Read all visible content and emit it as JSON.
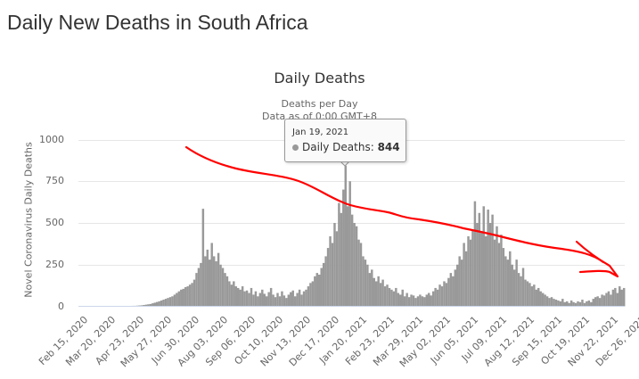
{
  "page_title": "Daily New Deaths in South Africa",
  "tooltip": {
    "date": "Jan 19, 2021",
    "series": "Daily Deaths",
    "value": "844"
  },
  "chart_data": {
    "type": "bar",
    "title": "Daily Deaths",
    "subtitle": "Deaths per Day",
    "subtitle2": "Data as of 0:00 GMT+8",
    "xlabel": "",
    "ylabel": "Novel Coronavirus Daily Deaths",
    "ylim": [
      0,
      1000
    ],
    "y_ticks": [
      "0",
      "250",
      "500",
      "750",
      "1000"
    ],
    "x_ticks": [
      "Feb 15, 2020",
      "Mar 20, 2020",
      "Apr 23, 2020",
      "May 27, 2020",
      "Jun 30, 2020",
      "Aug 03, 2020",
      "Sep 06, 2020",
      "Oct 10, 2020",
      "Nov 13, 2020",
      "Dec 17, 2020",
      "Jan 20, 2021",
      "Feb 23, 2021",
      "Mar 29, 2021",
      "May 02, 2021",
      "Jun 05, 2021",
      "Jul 09, 2021",
      "Aug 12, 2021",
      "Sep 15, 2021",
      "Oct 19, 2021",
      "Nov 22, 2021",
      "Dec 26, 2021"
    ],
    "grid": true,
    "color": "#999999",
    "annotation_color": "#ff0000",
    "x_start": "2020-03-27",
    "bin_days": 3,
    "values": [
      1,
      2,
      3,
      3,
      4,
      5,
      6,
      8,
      10,
      12,
      14,
      18,
      22,
      26,
      30,
      35,
      40,
      45,
      50,
      55,
      60,
      70,
      80,
      90,
      100,
      105,
      115,
      120,
      130,
      140,
      160,
      200,
      230,
      260,
      585,
      300,
      340,
      280,
      380,
      300,
      270,
      320,
      250,
      230,
      200,
      180,
      150,
      130,
      150,
      120,
      110,
      100,
      120,
      90,
      95,
      80,
      110,
      70,
      90,
      60,
      80,
      100,
      75,
      60,
      85,
      110,
      70,
      55,
      80,
      60,
      90,
      65,
      50,
      70,
      85,
      95,
      60,
      80,
      100,
      70,
      90,
      100,
      120,
      140,
      150,
      180,
      200,
      190,
      230,
      260,
      300,
      350,
      420,
      380,
      500,
      450,
      620,
      560,
      700,
      844,
      600,
      750,
      550,
      500,
      480,
      400,
      380,
      300,
      280,
      250,
      200,
      220,
      170,
      150,
      180,
      140,
      160,
      120,
      130,
      110,
      100,
      90,
      110,
      80,
      70,
      100,
      60,
      80,
      55,
      70,
      65,
      50,
      60,
      70,
      60,
      55,
      70,
      80,
      65,
      90,
      110,
      100,
      130,
      120,
      150,
      140,
      170,
      200,
      180,
      220,
      250,
      300,
      280,
      380,
      330,
      420,
      400,
      460,
      630,
      500,
      560,
      450,
      600,
      420,
      580,
      500,
      550,
      400,
      480,
      380,
      430,
      350,
      300,
      280,
      330,
      250,
      220,
      280,
      200,
      180,
      230,
      160,
      150,
      140,
      120,
      130,
      100,
      110,
      90,
      80,
      70,
      60,
      50,
      55,
      45,
      40,
      35,
      30,
      45,
      25,
      30,
      20,
      35,
      25,
      20,
      30,
      25,
      40,
      20,
      30,
      35,
      25,
      45,
      55,
      60,
      50,
      70,
      65,
      80,
      90,
      70,
      100,
      110,
      80,
      120,
      100,
      110
    ]
  }
}
